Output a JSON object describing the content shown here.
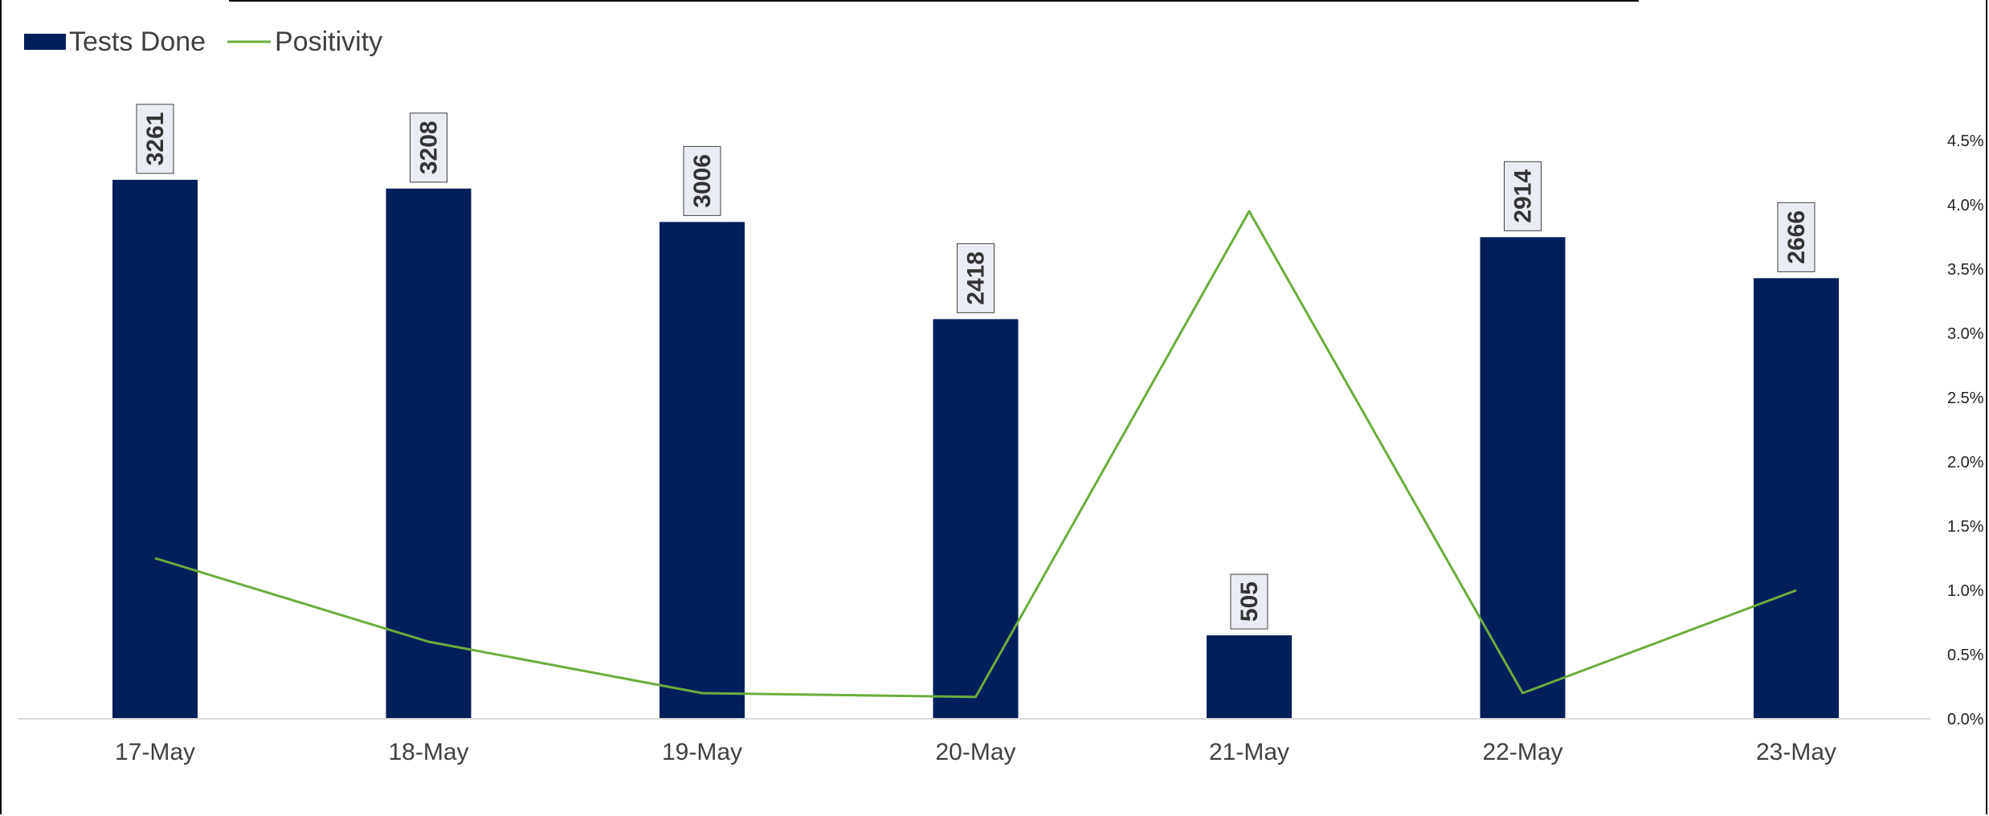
{
  "colors": {
    "bar": "#001f5b",
    "line": "#6aad3d",
    "axis": "#d9d9d9",
    "label_box_fill": "#e9edf3",
    "label_box_stroke": "#404040"
  },
  "chart_data": {
    "type": "bar",
    "categories": [
      "17-May",
      "18-May",
      "19-May",
      "20-May",
      "21-May",
      "22-May",
      "23-May"
    ],
    "series": [
      {
        "name": "Tests Done",
        "type": "bar",
        "axis": "primary",
        "values": [
          3261,
          3208,
          3006,
          2418,
          505,
          2914,
          2666
        ],
        "data_labels": [
          "3261",
          "3208",
          "3006",
          "2418",
          "505",
          "2914",
          "2666"
        ]
      },
      {
        "name": "Positivity",
        "type": "line",
        "axis": "secondary",
        "values": [
          1.25,
          0.6,
          0.2,
          0.17,
          3.95,
          0.2,
          1.0
        ]
      }
    ],
    "legend": {
      "position": "top-left",
      "entries": [
        "Tests Done",
        "Positivity"
      ]
    },
    "y_primary": {
      "min": 0,
      "max": 3500,
      "visible": false
    },
    "y_secondary": {
      "min": 0,
      "max": 4.5,
      "ticks": [
        "0.0%",
        "0.5%",
        "1.0%",
        "1.5%",
        "2.0%",
        "2.5%",
        "3.0%",
        "3.5%",
        "4.0%",
        "4.5%"
      ],
      "position": "right"
    },
    "grid": false,
    "title": "",
    "xlabel": "",
    "ylabel": ""
  }
}
